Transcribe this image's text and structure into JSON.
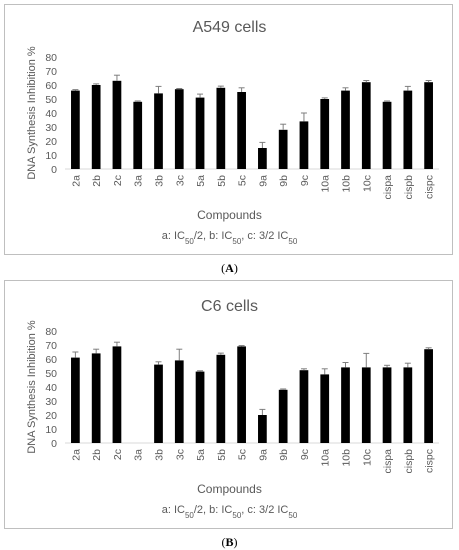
{
  "captions": [
    "(A)",
    "(B)"
  ],
  "chart_data": [
    {
      "type": "bar",
      "title": "A549 cells",
      "ylabel": "DNA Synthesis Inhibition %",
      "xlabel": "Compounds",
      "note_parts": [
        "a: IC",
        "50",
        "/2, b: IC",
        "50",
        ", c: 3/2 IC",
        "50"
      ],
      "ylim": [
        0,
        80
      ],
      "yticks": [
        0,
        10,
        20,
        30,
        40,
        50,
        60,
        70,
        80
      ],
      "grid": false,
      "categories": [
        "2a",
        "2b",
        "2c",
        "3a",
        "3b",
        "3c",
        "5a",
        "5b",
        "5c",
        "9a",
        "9b",
        "9c",
        "10a",
        "10b",
        "10c",
        "cispa",
        "cispb",
        "cispc"
      ],
      "series": [
        {
          "values": [
            56,
            60,
            63,
            48,
            54,
            57,
            51,
            58,
            55,
            15,
            28,
            34,
            50,
            56,
            62,
            48,
            56,
            62
          ],
          "errors": [
            0.7,
            0.8,
            4,
            0.6,
            5,
            0.5,
            2.5,
            1.2,
            3,
            4,
            4,
            6,
            0.8,
            2,
            1.2,
            0.6,
            3,
            1.2
          ],
          "color": "#000000"
        }
      ]
    },
    {
      "type": "bar",
      "title": "C6 cells",
      "ylabel": "DNA Synthesis Inhibition %",
      "xlabel": "Compounds",
      "note_parts": [
        "a: IC",
        "50",
        "/2, b: IC",
        "50",
        ", c: 3/2 IC",
        "50"
      ],
      "ylim": [
        0,
        80
      ],
      "yticks": [
        0,
        10,
        20,
        30,
        40,
        50,
        60,
        70,
        80
      ],
      "grid": false,
      "categories": [
        "2a",
        "2b",
        "2c",
        "3a",
        "3b",
        "3c",
        "5a",
        "5b",
        "5c",
        "9a",
        "9b",
        "9c",
        "10a",
        "10b",
        "10c",
        "cispa",
        "cispb",
        "cispc"
      ],
      "series": [
        {
          "values": [
            61,
            64,
            69,
            0,
            56,
            59,
            51,
            63,
            69,
            20,
            38,
            52,
            49,
            54,
            54,
            54,
            54,
            67
          ],
          "errors": [
            4,
            3,
            3,
            0,
            2,
            8,
            0.6,
            1.2,
            0.6,
            4,
            0.6,
            1,
            4,
            3.5,
            10,
            1.5,
            3,
            1
          ],
          "color": "#000000"
        }
      ]
    }
  ]
}
